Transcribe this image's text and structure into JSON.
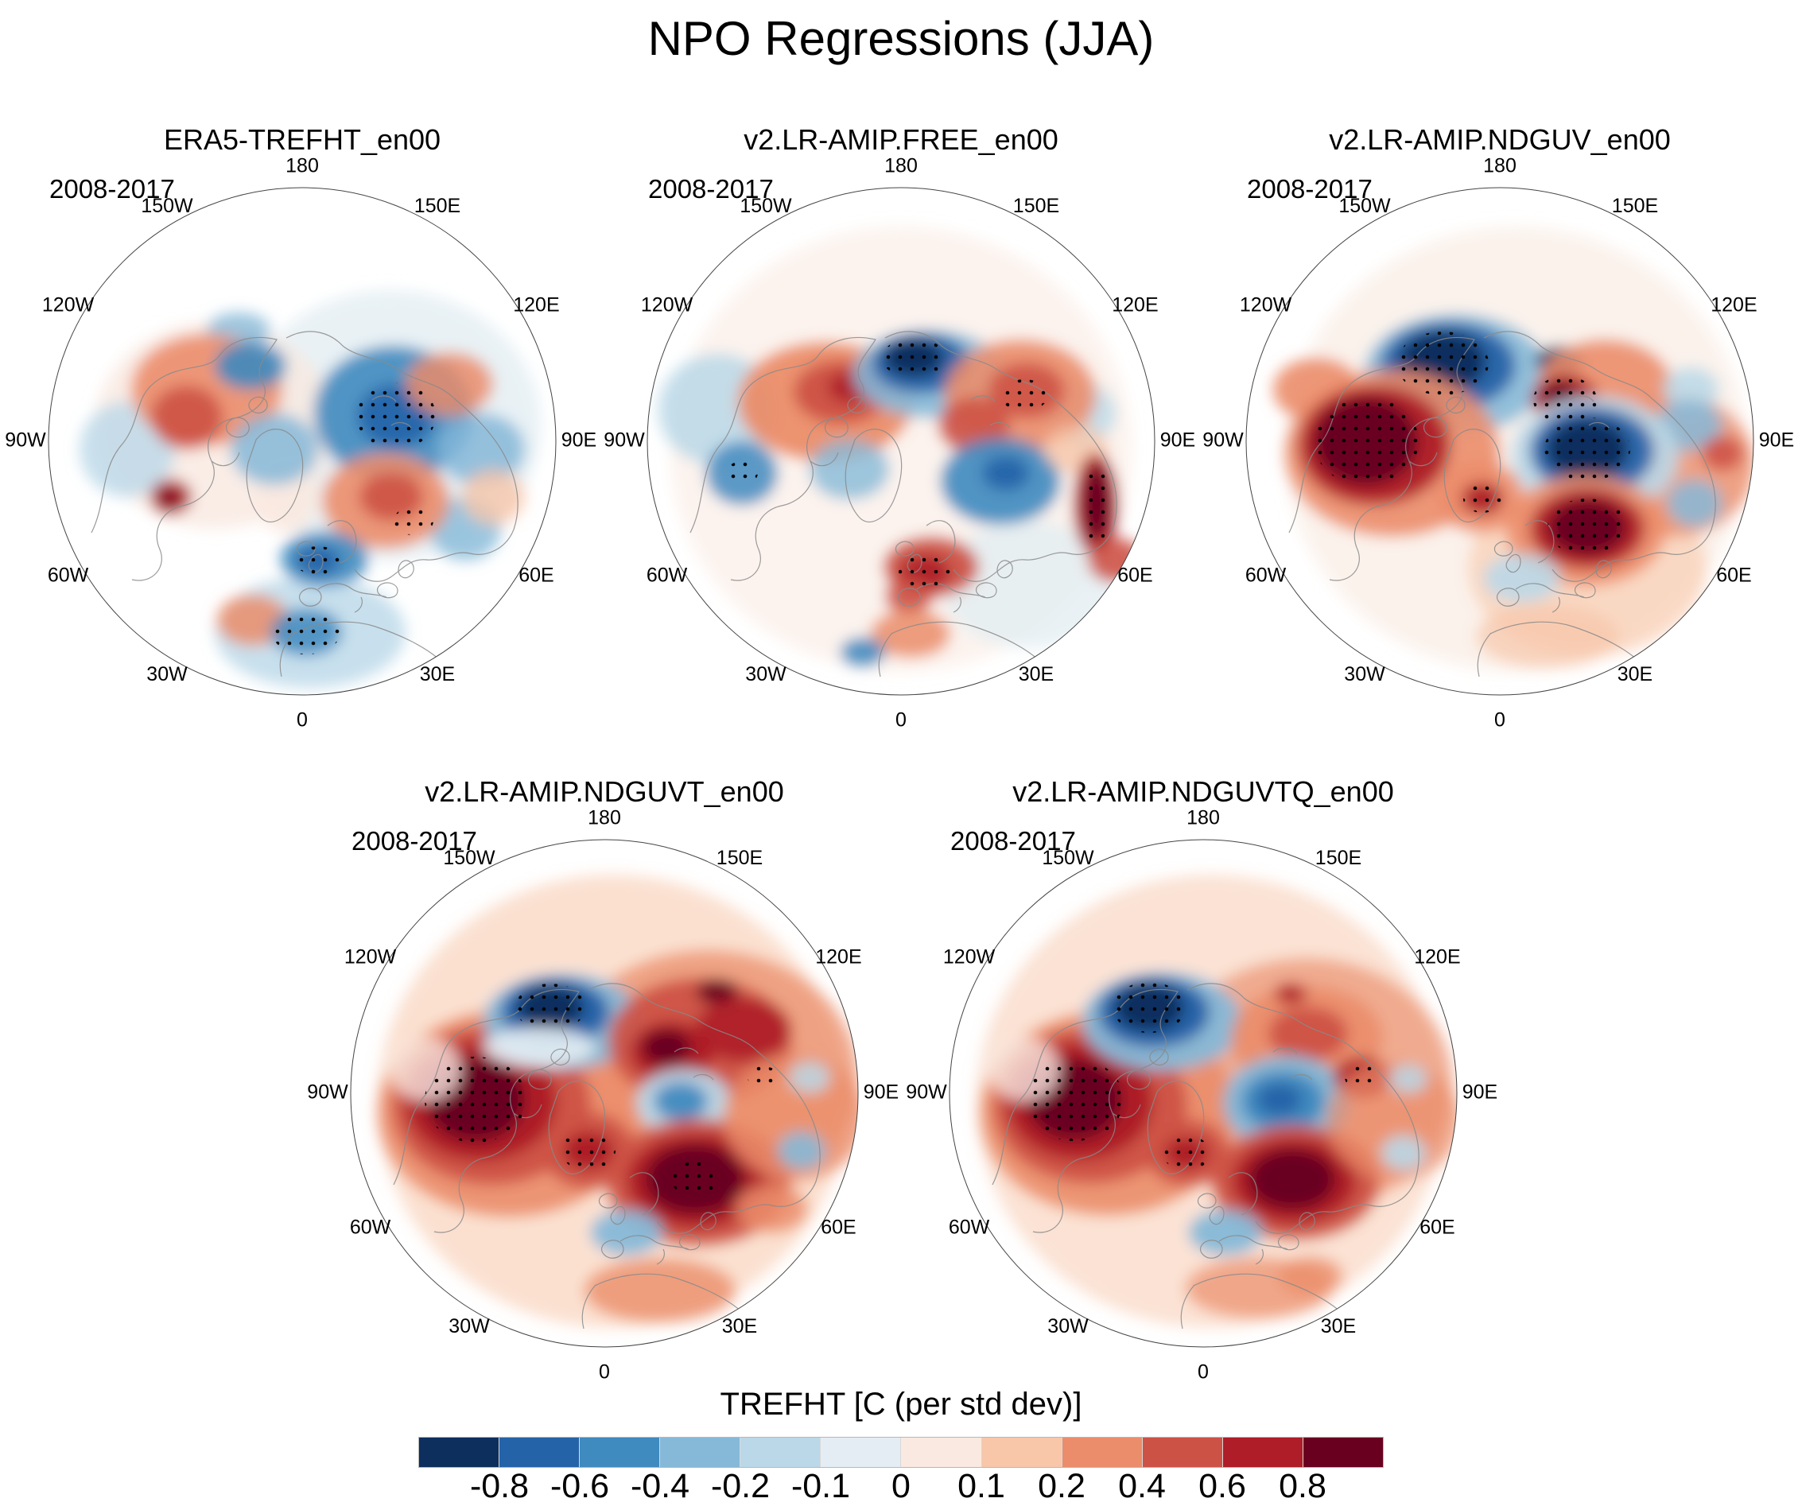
{
  "figure_title": "NPO Regressions (JJA)",
  "period_label": "2008-2017",
  "lon_ticks": [
    {
      "label": "180",
      "deg": 0
    },
    {
      "label": "150W",
      "deg": -30
    },
    {
      "label": "150E",
      "deg": 30
    },
    {
      "label": "120W",
      "deg": -60
    },
    {
      "label": "120E",
      "deg": 60
    },
    {
      "label": "90W",
      "deg": -90
    },
    {
      "label": "90E",
      "deg": 90
    },
    {
      "label": "60W",
      "deg": -120
    },
    {
      "label": "60E",
      "deg": 120
    },
    {
      "label": "30W",
      "deg": -150
    },
    {
      "label": "30E",
      "deg": 150
    },
    {
      "label": "0",
      "deg": 180
    }
  ],
  "palette": [
    "#0d2f5e",
    "#2563a8",
    "#3f8abf",
    "#86b9d8",
    "#bad8e8",
    "#e4edf3",
    "#f9e9e0",
    "#f8c6a9",
    "#eb8d6a",
    "#cd5246",
    "#ae1d28",
    "#690020"
  ],
  "colorbar": {
    "title": "TREFHT [C (per std dev)]",
    "tick_labels": [
      "-0.8",
      "-0.6",
      "-0.4",
      "-0.2",
      "-0.1",
      "0",
      "0.1",
      "0.2",
      "0.4",
      "0.6",
      "0.8"
    ]
  },
  "panels": [
    {
      "title": "ERA5-TREFHT_en00",
      "blobs": [
        [
          430,
          300,
          190,
          170,
          5,
          0.8
        ],
        [
          210,
          300,
          150,
          130,
          6,
          0.8
        ],
        [
          330,
          560,
          120,
          70,
          4,
          0.8
        ],
        [
          100,
          330,
          60,
          60,
          4,
          0.8
        ],
        [
          240,
          180,
          40,
          22,
          3,
          0.8
        ],
        [
          300,
          390,
          40,
          45,
          6,
          0.9
        ],
        [
          200,
          255,
          95,
          70,
          8,
          0.9
        ],
        [
          175,
          290,
          45,
          40,
          9,
          0.9
        ],
        [
          255,
          225,
          45,
          30,
          2,
          0.9
        ],
        [
          285,
          330,
          55,
          45,
          3,
          0.85
        ],
        [
          155,
          390,
          26,
          22,
          10,
          0.95
        ],
        [
          152,
          392,
          11,
          9,
          11,
          1
        ],
        [
          435,
          285,
          100,
          85,
          2,
          0.9
        ],
        [
          438,
          288,
          48,
          40,
          1,
          0.9
        ],
        [
          545,
          330,
          55,
          45,
          3,
          0.85
        ],
        [
          525,
          430,
          45,
          40,
          3,
          0.8
        ],
        [
          425,
          395,
          80,
          60,
          8,
          0.9
        ],
        [
          432,
          390,
          40,
          30,
          9,
          0.9
        ],
        [
          505,
          248,
          55,
          40,
          8,
          0.85
        ],
        [
          560,
          390,
          40,
          35,
          7,
          0.8
        ],
        [
          348,
          468,
          55,
          35,
          2,
          0.9
        ],
        [
          340,
          470,
          28,
          18,
          1,
          0.9
        ],
        [
          258,
          545,
          45,
          32,
          8,
          0.85
        ],
        [
          325,
          560,
          45,
          30,
          2,
          0.85
        ]
      ],
      "stipples": [
        [
          438,
          288,
          50,
          42
        ],
        [
          340,
          470,
          30,
          18
        ],
        [
          325,
          562,
          42,
          26
        ],
        [
          460,
          420,
          25,
          18
        ]
      ]
    },
    {
      "title": "v2.LR-AMIP.FREE_en00",
      "blobs": [
        [
          320,
          330,
          290,
          280,
          6,
          0.55
        ],
        [
          90,
          280,
          75,
          70,
          4,
          0.85
        ],
        [
          120,
          360,
          45,
          40,
          2,
          0.85
        ],
        [
          480,
          500,
          110,
          80,
          5,
          0.8
        ],
        [
          545,
          285,
          45,
          40,
          4,
          0.8
        ],
        [
          225,
          270,
          110,
          75,
          8,
          0.95
        ],
        [
          245,
          258,
          60,
          40,
          9,
          0.95
        ],
        [
          258,
          252,
          30,
          20,
          10,
          0.95
        ],
        [
          255,
          355,
          50,
          38,
          3,
          0.8
        ],
        [
          355,
          235,
          95,
          55,
          3,
          0.9
        ],
        [
          345,
          222,
          62,
          38,
          1,
          0.95
        ],
        [
          336,
          215,
          38,
          24,
          0,
          1
        ],
        [
          470,
          262,
          95,
          70,
          8,
          0.9
        ],
        [
          478,
          256,
          48,
          35,
          9,
          0.9
        ],
        [
          412,
          300,
          45,
          35,
          9,
          0.9
        ],
        [
          445,
          370,
          75,
          55,
          2,
          0.9
        ],
        [
          452,
          360,
          30,
          22,
          1,
          0.9
        ],
        [
          540,
          330,
          40,
          30,
          7,
          0.8
        ],
        [
          565,
          400,
          28,
          65,
          10,
          0.95
        ],
        [
          566,
          398,
          16,
          48,
          11,
          1
        ],
        [
          590,
          470,
          35,
          28,
          9,
          0.9
        ],
        [
          358,
          478,
          60,
          38,
          9,
          0.95
        ],
        [
          350,
          485,
          32,
          22,
          10,
          0.95
        ],
        [
          330,
          515,
          30,
          22,
          9,
          0.9
        ],
        [
          332,
          562,
          50,
          30,
          8,
          0.85
        ],
        [
          272,
          585,
          28,
          18,
          2,
          0.9
        ]
      ],
      "stipples": [
        [
          336,
          215,
          40,
          25
        ],
        [
          566,
          398,
          18,
          50
        ],
        [
          350,
          485,
          33,
          22
        ],
        [
          120,
          360,
          20,
          15
        ],
        [
          475,
          262,
          30,
          20
        ]
      ]
    },
    {
      "title": "v2.LR-AMIP.NDGUV_en00",
      "blobs": [
        [
          340,
          330,
          290,
          280,
          6,
          0.6
        ],
        [
          430,
          480,
          150,
          110,
          7,
          0.6
        ],
        [
          540,
          350,
          100,
          90,
          8,
          0.8
        ],
        [
          265,
          235,
          115,
          75,
          3,
          0.9
        ],
        [
          255,
          225,
          85,
          55,
          1,
          0.95
        ],
        [
          248,
          220,
          55,
          38,
          0,
          1
        ],
        [
          395,
          218,
          30,
          18,
          0,
          0.9
        ],
        [
          90,
          255,
          55,
          40,
          8,
          0.9
        ],
        [
          185,
          335,
          135,
          105,
          8,
          0.9
        ],
        [
          162,
          325,
          95,
          75,
          10,
          0.95
        ],
        [
          152,
          320,
          65,
          55,
          11,
          1
        ],
        [
          295,
          390,
          55,
          45,
          8,
          0.9
        ],
        [
          298,
          392,
          26,
          20,
          10,
          0.95
        ],
        [
          452,
          252,
          85,
          60,
          8,
          0.9
        ],
        [
          402,
          268,
          42,
          32,
          10,
          0.95
        ],
        [
          396,
          262,
          22,
          16,
          11,
          1
        ],
        [
          560,
          255,
          35,
          28,
          4,
          0.85
        ],
        [
          558,
          300,
          42,
          32,
          3,
          0.85
        ],
        [
          440,
          338,
          105,
          75,
          4,
          0.9
        ],
        [
          436,
          332,
          78,
          55,
          1,
          0.95
        ],
        [
          430,
          330,
          52,
          38,
          0,
          1
        ],
        [
          428,
          432,
          100,
          70,
          8,
          0.9
        ],
        [
          430,
          430,
          72,
          50,
          10,
          0.95
        ],
        [
          430,
          428,
          48,
          34,
          11,
          1
        ],
        [
          565,
          398,
          35,
          30,
          3,
          0.85
        ],
        [
          348,
          492,
          48,
          30,
          4,
          0.9
        ],
        [
          600,
          335,
          26,
          22,
          9,
          0.9
        ],
        [
          380,
          565,
          90,
          40,
          7,
          0.7
        ]
      ],
      "stipples": [
        [
          248,
          222,
          58,
          40
        ],
        [
          152,
          320,
          66,
          56
        ],
        [
          298,
          392,
          24,
          18
        ],
        [
          402,
          268,
          40,
          30
        ],
        [
          430,
          330,
          54,
          40
        ],
        [
          430,
          428,
          50,
          36
        ]
      ]
    },
    {
      "title": "v2.LR-AMIP.NDGUVT_en00",
      "blobs": [
        [
          330,
          330,
          295,
          285,
          7,
          0.55
        ],
        [
          450,
          300,
          190,
          160,
          8,
          0.75
        ],
        [
          200,
          345,
          165,
          130,
          8,
          0.9
        ],
        [
          178,
          335,
          125,
          100,
          9,
          0.95
        ],
        [
          165,
          330,
          95,
          75,
          10,
          1
        ],
        [
          158,
          328,
          62,
          52,
          11,
          1
        ],
        [
          268,
          230,
          100,
          60,
          3,
          0.95
        ],
        [
          258,
          218,
          68,
          42,
          1,
          1
        ],
        [
          252,
          212,
          42,
          28,
          0,
          1
        ],
        [
          238,
          262,
          70,
          25,
          5,
          0.9
        ],
        [
          300,
          392,
          58,
          48,
          9,
          0.95
        ],
        [
          300,
          392,
          32,
          24,
          10,
          1
        ],
        [
          440,
          255,
          115,
          80,
          9,
          0.95
        ],
        [
          405,
          268,
          52,
          38,
          10,
          1
        ],
        [
          398,
          262,
          30,
          22,
          11,
          1
        ],
        [
          462,
          192,
          26,
          16,
          11,
          0.95
        ],
        [
          495,
          240,
          60,
          40,
          10,
          0.9
        ],
        [
          420,
          332,
          60,
          42,
          4,
          0.95
        ],
        [
          416,
          330,
          34,
          24,
          2,
          0.95
        ],
        [
          438,
          432,
          115,
          80,
          9,
          0.95
        ],
        [
          436,
          430,
          88,
          60,
          10,
          1
        ],
        [
          434,
          428,
          62,
          44,
          11,
          1
        ],
        [
          560,
          350,
          90,
          80,
          8,
          0.8
        ],
        [
          568,
          392,
          30,
          24,
          3,
          0.9
        ],
        [
          578,
          300,
          26,
          20,
          4,
          0.85
        ],
        [
          348,
          495,
          45,
          28,
          3,
          0.95
        ],
        [
          390,
          568,
          95,
          40,
          8,
          0.8
        ],
        [
          95,
          290,
          45,
          40,
          6,
          0.8
        ],
        [
          530,
          465,
          45,
          30,
          8,
          0.85
        ]
      ],
      "stipples": [
        [
          158,
          328,
          64,
          54
        ],
        [
          252,
          212,
          44,
          30
        ],
        [
          300,
          392,
          34,
          26
        ],
        [
          434,
          428,
          30,
          22
        ],
        [
          520,
          300,
          20,
          14
        ]
      ]
    },
    {
      "title": "v2.LR-AMIP.NDGUVTQ_en00",
      "blobs": [
        [
          330,
          330,
          295,
          285,
          7,
          0.5
        ],
        [
          450,
          310,
          185,
          160,
          8,
          0.65
        ],
        [
          200,
          345,
          160,
          128,
          8,
          0.9
        ],
        [
          178,
          335,
          122,
          98,
          9,
          0.95
        ],
        [
          165,
          330,
          92,
          74,
          10,
          1
        ],
        [
          158,
          328,
          60,
          50,
          11,
          1
        ],
        [
          268,
          230,
          100,
          62,
          3,
          0.95
        ],
        [
          258,
          218,
          70,
          44,
          1,
          1
        ],
        [
          252,
          212,
          44,
          30,
          0,
          1
        ],
        [
          300,
          395,
          52,
          42,
          9,
          0.95
        ],
        [
          299,
          395,
          28,
          20,
          10,
          1
        ],
        [
          450,
          250,
          95,
          65,
          8,
          0.9
        ],
        [
          452,
          245,
          50,
          34,
          9,
          0.95
        ],
        [
          430,
          195,
          20,
          13,
          10,
          0.9
        ],
        [
          425,
          332,
          80,
          60,
          3,
          0.95
        ],
        [
          420,
          330,
          52,
          38,
          2,
          1
        ],
        [
          416,
          328,
          28,
          20,
          1,
          1
        ],
        [
          436,
          432,
          105,
          72,
          9,
          0.95
        ],
        [
          434,
          430,
          78,
          54,
          10,
          1
        ],
        [
          432,
          428,
          54,
          38,
          11,
          1
        ],
        [
          520,
          300,
          36,
          26,
          10,
          0.9
        ],
        [
          560,
          355,
          85,
          75,
          8,
          0.7
        ],
        [
          572,
          395,
          28,
          22,
          4,
          0.9
        ],
        [
          578,
          302,
          24,
          18,
          4,
          0.85
        ],
        [
          348,
          495,
          46,
          28,
          3,
          0.95
        ],
        [
          390,
          565,
          92,
          38,
          8,
          0.7
        ],
        [
          95,
          290,
          45,
          40,
          6,
          0.8
        ],
        [
          455,
          550,
          40,
          24,
          8,
          0.8
        ]
      ],
      "stipples": [
        [
          158,
          328,
          62,
          52
        ],
        [
          252,
          212,
          46,
          32
        ],
        [
          299,
          395,
          30,
          22
        ],
        [
          520,
          300,
          22,
          16
        ]
      ]
    }
  ],
  "chart_data": {
    "type": "heatmap",
    "subtype": "north polar stereographic filled-contour regression maps",
    "title": "NPO Regressions (JJA)",
    "variable": "TREFHT",
    "units": "C (per std dev)",
    "season": "JJA",
    "period": "2008-2017",
    "contour_levels": [
      -0.8,
      -0.6,
      -0.4,
      -0.2,
      -0.1,
      0,
      0.1,
      0.2,
      0.4,
      0.6,
      0.8
    ],
    "colorbar_colors": [
      "#0d2f5e",
      "#2563a8",
      "#3f8abf",
      "#86b9d8",
      "#bad8e8",
      "#e4edf3",
      "#f9e9e0",
      "#f8c6a9",
      "#eb8d6a",
      "#cd5246",
      "#ae1d28",
      "#690020"
    ],
    "panel_titles": [
      "ERA5-TREFHT_en00",
      "v2.LR-AMIP.FREE_en00",
      "v2.LR-AMIP.NDGUV_en00",
      "v2.LR-AMIP.NDGUVT_en00",
      "v2.LR-AMIP.NDGUVTQ_en00"
    ],
    "longitude_labels": [
      "180",
      "150W",
      "150E",
      "120W",
      "120E",
      "90W",
      "90E",
      "60W",
      "60E",
      "30W",
      "30E",
      "0"
    ],
    "notes": "Black stippling marks significant regions; each map shows 2008-2017 JJA TREFHT regressed on the NPO index."
  }
}
